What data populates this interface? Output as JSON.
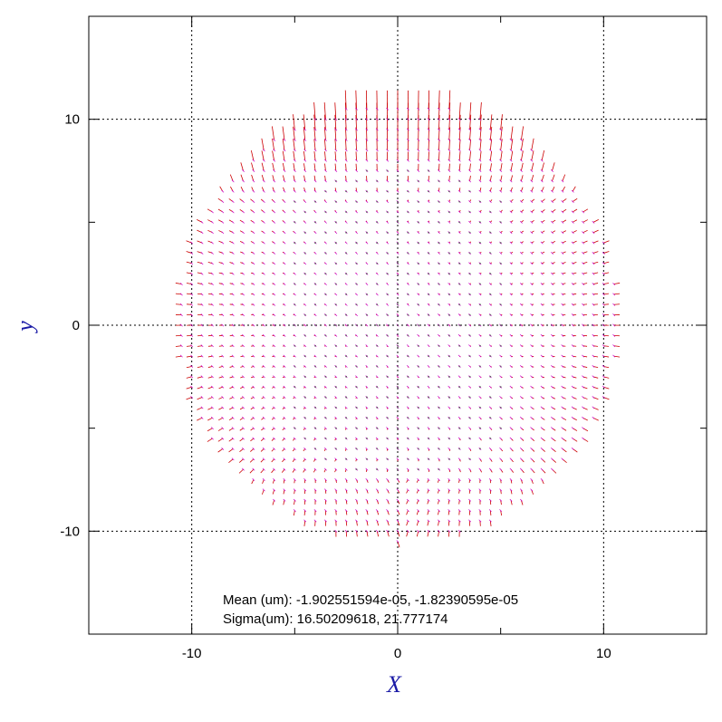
{
  "chart_data": {
    "type": "scatter",
    "subtype": "vector-field",
    "title": "",
    "xlabel": "X",
    "ylabel": "y",
    "xlim": [
      -15,
      15
    ],
    "ylim": [
      -15,
      15
    ],
    "x_major_ticks": [
      -10,
      0,
      10
    ],
    "y_major_ticks": [
      -10,
      0,
      10
    ],
    "x_tick_labels": [
      "-10",
      "0",
      "10"
    ],
    "y_tick_labels": [
      "-10",
      "0",
      "10"
    ],
    "grid": true,
    "grid_style": "dotted",
    "field": {
      "grid_spacing": 0.5,
      "region": "circle",
      "center": [
        0,
        0.2
      ],
      "radius": 10.7,
      "point_color": "#00aa00",
      "marker_color": "#cc00cc",
      "vector_color": "#cc0000",
      "description": "displacement vectors: small near center, growing toward the rim, largest pointing up along the top edge"
    },
    "annotations": {
      "mean": "Mean (um): -1.902551594e-05, -1.82390595e-05",
      "sigma": "Sigma(um): 16.50209618, 21.777174"
    }
  },
  "colors": {
    "axis_title": "#1a1aa6",
    "frame": "#000000",
    "grid": "#000000"
  }
}
